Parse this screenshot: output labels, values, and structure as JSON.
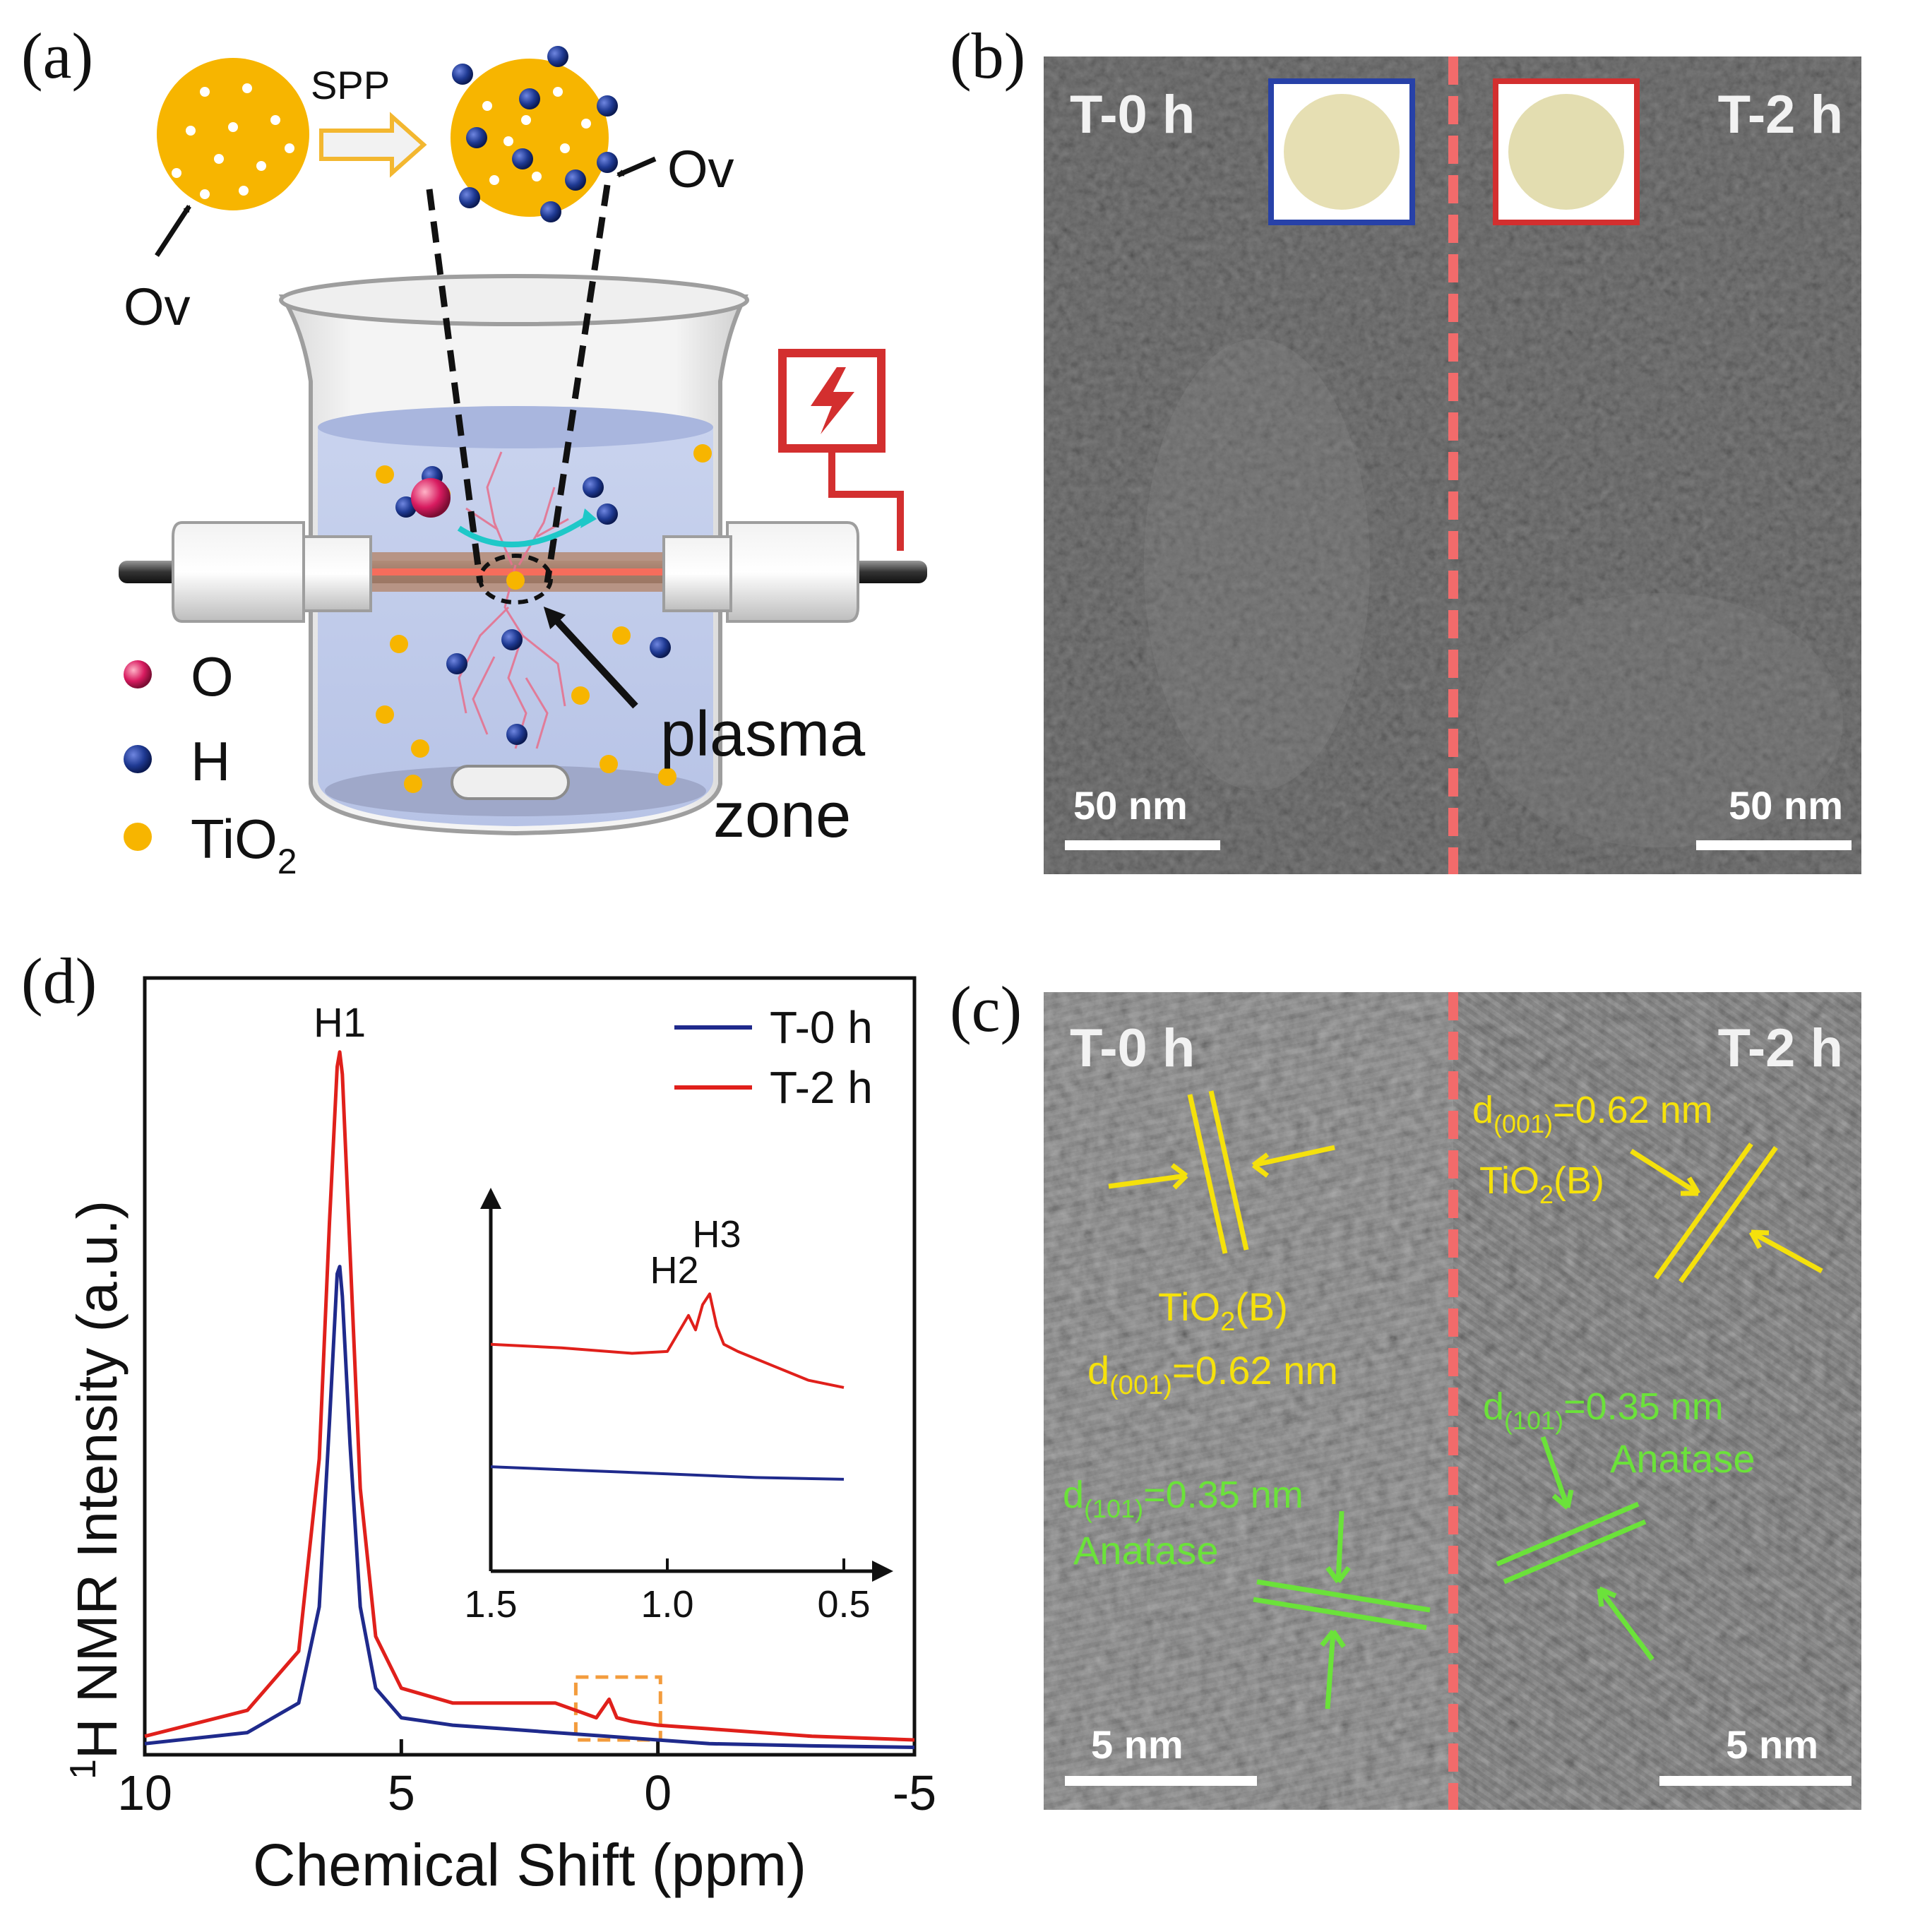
{
  "panel_a": {
    "label": "(a)",
    "spp": "SPP",
    "ov_left": "Ov",
    "ov_right": "Ov",
    "plasma": "plasma",
    "zone": "zone",
    "legend": {
      "o": "O",
      "h": "H",
      "tio2_main": "TiO",
      "tio2_sub": "2"
    },
    "colors": {
      "tio2": "#F7B500",
      "h": "#1F3A93",
      "o": "#C2185B",
      "power": "#D32F2F"
    }
  },
  "panel_b": {
    "label": "(b)",
    "left_title": "T-0 h",
    "right_title": "T-2 h",
    "scale_left": "50 nm",
    "scale_right": "50 nm"
  },
  "panel_c": {
    "label": "(c)",
    "left_title": "T-0 h",
    "right_title": "T-2 h",
    "scale_left": "5 nm",
    "scale_right": "5 nm",
    "l_tio2b_main": "TiO",
    "l_tio2b_sub": "2",
    "l_tio2b_end": "(B)",
    "l_d001_main": "d",
    "l_d001_sub": "(001)",
    "l_d001_end": "=0.62 nm",
    "l_d101_main": "d",
    "l_d101_sub": "(101)",
    "l_d101_end": "=0.35 nm",
    "l_anatase": "Anatase",
    "r_d001_main": "d",
    "r_d001_sub": "(001)",
    "r_d001_end": "=0.62 nm",
    "r_tio2b_main": "TiO",
    "r_tio2b_sub": "2",
    "r_tio2b_end": "(B)",
    "r_d101_main": "d",
    "r_d101_sub": "(101)",
    "r_d101_end": "=0.35 nm",
    "r_anatase": "Anatase"
  },
  "panel_d": {
    "label": "(d)",
    "ylabel_sup": "1",
    "ylabel_main": "H NMR Intensity (a.u.)",
    "inset_labels": {
      "h2": "H2",
      "h3": "H3"
    }
  },
  "chart_data": {
    "type": "line",
    "title": "",
    "xlabel": "Chemical Shift (ppm)",
    "ylabel": "1H NMR Intensity (a.u.)",
    "xlim": [
      10,
      -5
    ],
    "ylim": [
      0,
      1.05
    ],
    "xticks": [
      10,
      5,
      0,
      -5
    ],
    "xtick_labels": [
      "10",
      "5",
      "0",
      "-5"
    ],
    "grid": false,
    "legend_position": "top-right",
    "peak_label": "H1",
    "series": [
      {
        "name": "T-0 h",
        "color": "#1F2A8C",
        "x": [
          10,
          8,
          7,
          6.6,
          6.4,
          6.25,
          6.2,
          6.15,
          6.0,
          5.8,
          5.5,
          5,
          4,
          3,
          2,
          1,
          0,
          -1,
          -3,
          -5
        ],
        "y": [
          0.015,
          0.03,
          0.07,
          0.2,
          0.45,
          0.65,
          0.66,
          0.62,
          0.42,
          0.2,
          0.09,
          0.05,
          0.04,
          0.035,
          0.03,
          0.025,
          0.02,
          0.015,
          0.012,
          0.01
        ]
      },
      {
        "name": "T-2 h",
        "color": "#E0201B",
        "x": [
          10,
          8,
          7,
          6.6,
          6.4,
          6.25,
          6.2,
          6.15,
          6.0,
          5.8,
          5.5,
          5,
          4,
          3,
          2,
          1.2,
          0.95,
          0.8,
          0.5,
          0,
          -1,
          -3,
          -5
        ],
        "y": [
          0.025,
          0.06,
          0.14,
          0.4,
          0.72,
          0.93,
          0.95,
          0.92,
          0.68,
          0.36,
          0.16,
          0.09,
          0.07,
          0.07,
          0.07,
          0.05,
          0.075,
          0.05,
          0.045,
          0.04,
          0.035,
          0.025,
          0.02
        ]
      }
    ],
    "inset": {
      "xlim": [
        1.5,
        0.5
      ],
      "xticks": [
        1.5,
        1.0,
        0.5
      ],
      "xtick_labels": [
        "1.5",
        "1.0",
        "0.5"
      ],
      "ylim": [
        0,
        1
      ],
      "series": [
        {
          "name": "T-0 h",
          "color": "#1F2A8C",
          "x": [
            1.5,
            1.25,
            1.0,
            0.75,
            0.5
          ],
          "y": [
            0.29,
            0.28,
            0.27,
            0.26,
            0.255
          ]
        },
        {
          "name": "T-2 h",
          "color": "#E0201B",
          "x": [
            1.5,
            1.3,
            1.1,
            1.0,
            0.97,
            0.94,
            0.92,
            0.9,
            0.88,
            0.86,
            0.84,
            0.8,
            0.7,
            0.6,
            0.5
          ],
          "y": [
            0.63,
            0.62,
            0.605,
            0.61,
            0.66,
            0.71,
            0.67,
            0.74,
            0.77,
            0.68,
            0.63,
            0.61,
            0.57,
            0.53,
            0.51
          ]
        }
      ]
    }
  }
}
